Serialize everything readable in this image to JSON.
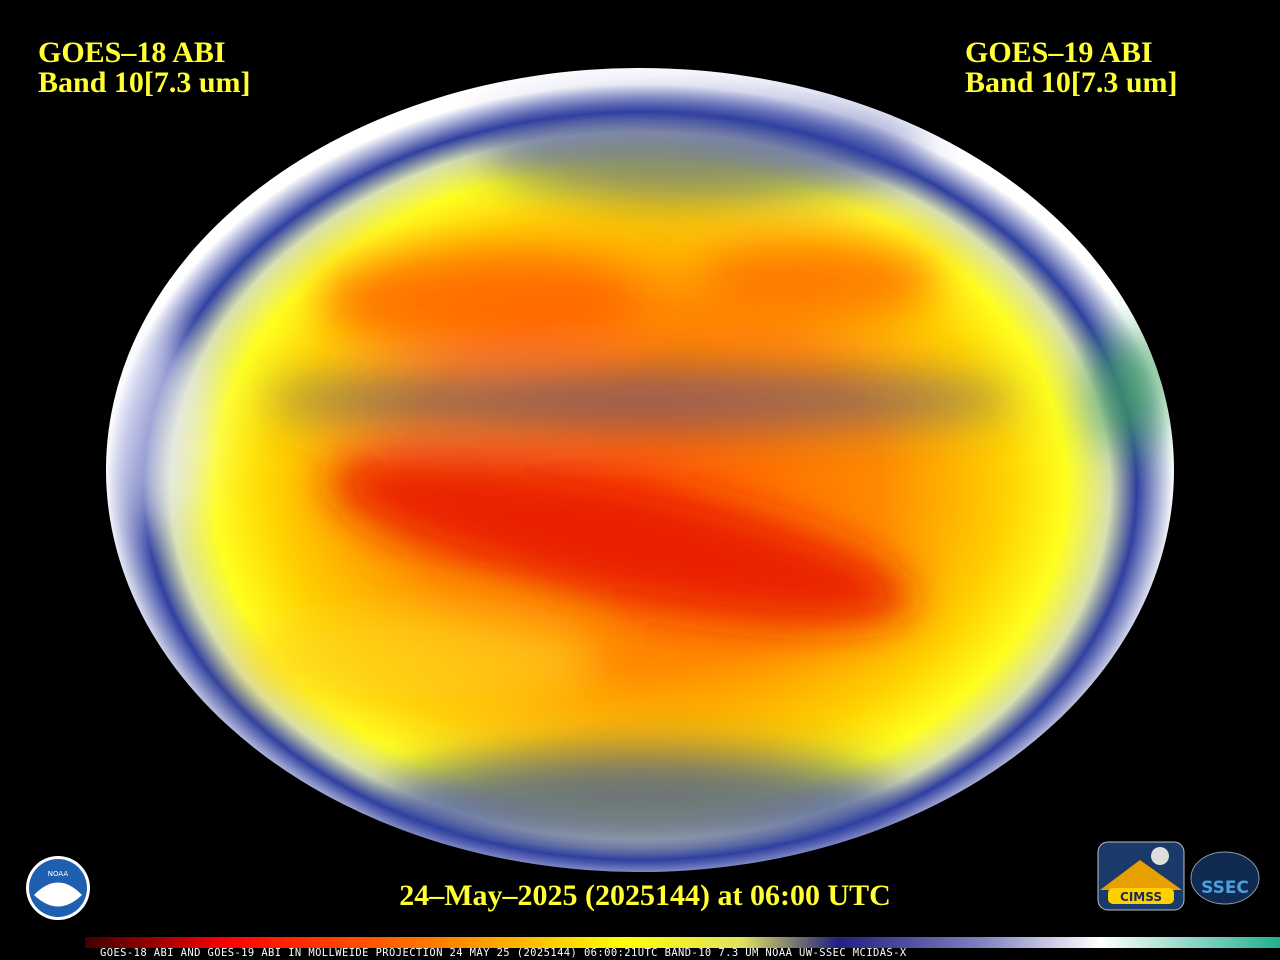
{
  "left_label": {
    "satellite": "GOES–18 ABI",
    "band": "Band 10[7.3 um]"
  },
  "right_label": {
    "satellite": "GOES–19 ABI",
    "band": "Band 10[7.3 um]"
  },
  "timestamp": "24–May–2025 (2025144) at 06:00 UTC",
  "footer": "GOES-18 ABI AND GOES-19 ABI IN MOLLWEIDE PROJECTION 24 MAY 25 (2025144) 06:00:21UTC BAND-10 7.3 UM NOAA UW-SSEC MCIDAS-X",
  "logos": {
    "noaa": "NOAA",
    "cimss": "CIMSS",
    "ssec": "SSEC"
  }
}
